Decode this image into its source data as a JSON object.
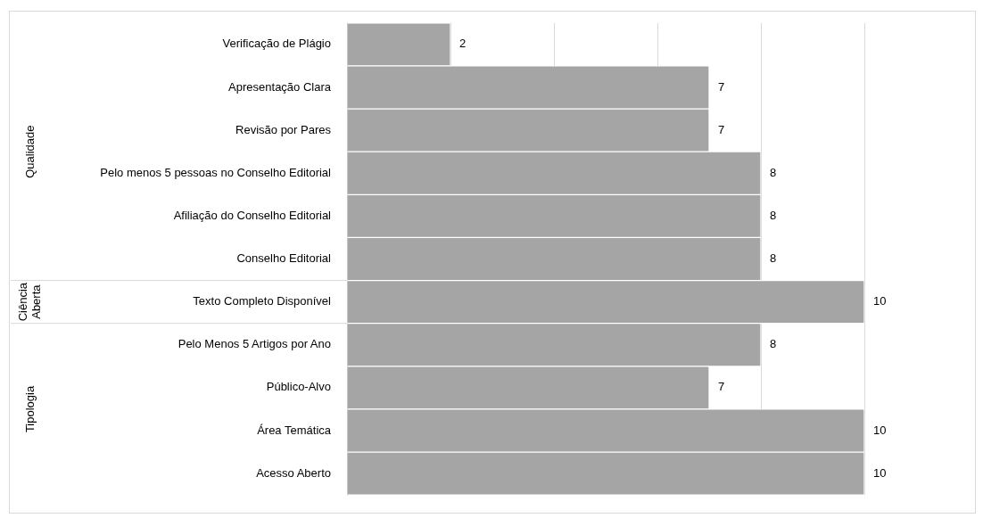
{
  "chart_data": {
    "type": "bar",
    "orientation": "horizontal",
    "relative": false,
    "categories": [
      "Verificação de Plágio",
      "Apresentação Clara",
      "Revisão por Pares",
      "Pelo menos 5 pessoas no Conselho Editorial",
      "Afiliação do Conselho Editorial",
      "Conselho Editorial",
      "Texto Completo Disponível",
      "Pelo Menos 5 Artigos por Ano",
      "Público-Alvo",
      "Área Temática",
      "Acesso Aberto"
    ],
    "values": [
      2,
      7,
      7,
      8,
      8,
      8,
      10,
      8,
      7,
      10,
      10
    ],
    "color": "#a5a5a5",
    "data_labels": true,
    "xticks": [
      {
        "value": 0,
        "label": null
      },
      {
        "value": 2,
        "label": null
      },
      {
        "value": 4,
        "label": null
      },
      {
        "value": 6,
        "label": null
      },
      {
        "value": 8,
        "label": null
      },
      {
        "value": 10,
        "label": null
      }
    ],
    "grid": "x",
    "tick_labels": "y",
    "legend": false,
    "annotations": [
      "Qualidade",
      "Ciência Aberta",
      "Tipologia"
    ]
  }
}
